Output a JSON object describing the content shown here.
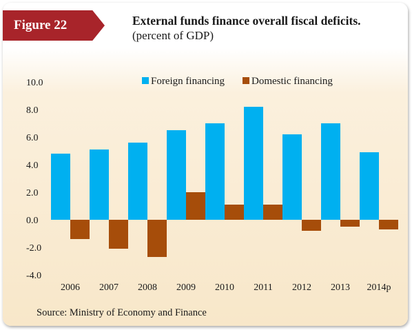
{
  "figure_label": "Figure 22",
  "title": "External funds finance overall fiscal deficits.",
  "subtitle": "(percent of GDP)",
  "source": "Source: Ministry of Economy and Finance",
  "colors": {
    "foreign": "#00b0f0",
    "domestic": "#a64d0a",
    "badge": "#a8242a"
  },
  "chart_data": {
    "type": "bar",
    "categories": [
      "2006",
      "2007",
      "2008",
      "2009",
      "2010",
      "2011",
      "2012",
      "2013",
      "2014p"
    ],
    "series": [
      {
        "name": "Foreign financing",
        "values": [
          4.8,
          5.1,
          5.6,
          6.5,
          7.0,
          8.2,
          6.2,
          7.0,
          4.9
        ]
      },
      {
        "name": "Domestic financing",
        "values": [
          -1.4,
          -2.1,
          -2.7,
          2.0,
          1.1,
          1.1,
          -0.8,
          -0.5,
          -0.7
        ]
      }
    ],
    "ylim": [
      -4.0,
      10.0
    ],
    "yticks": [
      "10.0",
      "8.0",
      "6.0",
      "4.0",
      "2.0",
      "0.0",
      "-2.0",
      "-4.0"
    ],
    "grid": false,
    "legend": "top"
  }
}
